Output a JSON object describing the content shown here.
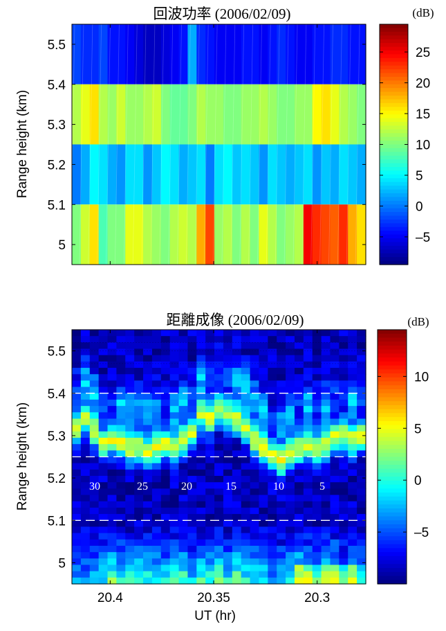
{
  "chart_data": [
    {
      "type": "heatmap",
      "title": "回波功率 (2006/02/09)",
      "ylabel": "Range height (km)",
      "xlabel": "",
      "colorbar_unit": "(dB)",
      "colorbar_ticks": [
        "25",
        "20",
        "15",
        "10",
        "5",
        "0",
        "–5"
      ],
      "colorbar_range": [
        -9.5,
        29.5
      ],
      "y_ticks": [
        "5.5",
        "5.4",
        "5.3",
        "5.2",
        "5.1",
        "5"
      ],
      "xlim": [
        20.4185,
        20.2765
      ],
      "ylim": [
        4.95,
        5.55
      ],
      "x_start": 20.4185,
      "x_end": 20.2765,
      "rows": [
        {
          "y0": 5.4,
          "y1": 5.55,
          "values": [
            -2,
            -3,
            -3,
            -2,
            -4,
            -4,
            -5,
            -6,
            -7,
            -7,
            -6,
            -5,
            -4,
            2,
            -3,
            -4,
            -5,
            -5,
            -5,
            -4,
            -4,
            -5,
            -4,
            -3,
            -4,
            -5,
            -5,
            -4,
            -4,
            -3,
            -3,
            -4,
            -4
          ]
        },
        {
          "y0": 5.25,
          "y1": 5.4,
          "values": [
            12,
            14,
            16,
            12,
            11,
            13,
            11,
            11,
            12,
            13,
            10,
            9,
            9,
            10,
            12,
            11,
            11,
            10,
            10,
            11,
            11,
            12,
            11,
            10,
            10,
            11,
            11,
            15,
            16,
            14,
            12,
            11,
            10
          ]
        },
        {
          "y0": 5.1,
          "y1": 5.25,
          "values": [
            0,
            2,
            5,
            4,
            2,
            1,
            4,
            4,
            1,
            3,
            5,
            4,
            2,
            3,
            4,
            0,
            4,
            5,
            3,
            4,
            3,
            1,
            4,
            3,
            2,
            3,
            4,
            1,
            3,
            2,
            4,
            3,
            2
          ]
        },
        {
          "y0": 4.95,
          "y1": 5.1,
          "values": [
            10,
            13,
            16,
            8,
            10,
            10,
            14,
            14,
            12,
            11,
            10,
            12,
            13,
            12,
            18,
            22,
            11,
            12,
            10,
            12,
            10,
            14,
            12,
            10,
            11,
            12,
            25,
            23,
            22,
            21,
            23,
            18,
            16
          ]
        }
      ]
    },
    {
      "type": "heatmap",
      "title": "距離成像 (2006/02/09)",
      "ylabel": "Range height (km)",
      "xlabel": "UT (hr)",
      "colorbar_unit": "(dB)",
      "colorbar_ticks": [
        "10",
        "5",
        "0",
        "–5"
      ],
      "colorbar_range": [
        -10,
        14.5
      ],
      "y_ticks": [
        "5.5",
        "5.4",
        "5.3",
        "5.2",
        "5.1",
        "5"
      ],
      "x_ticks": [
        "20.4",
        "20.35",
        "20.3"
      ],
      "xlim": [
        20.4185,
        20.2765
      ],
      "ylim": [
        4.95,
        5.55
      ],
      "dashed_lines_y": [
        5.4,
        5.25,
        5.1
      ],
      "annotations": [
        "30",
        "25",
        "20",
        "15",
        "10",
        "5"
      ],
      "description_note": "",
      "ridge_heights": [
        5.32,
        5.34,
        5.31,
        5.28,
        5.29,
        5.28,
        5.27,
        5.27,
        5.26,
        5.27,
        5.28,
        5.27,
        5.29,
        5.31,
        5.35,
        5.34,
        5.36,
        5.35,
        5.34,
        5.32,
        5.29,
        5.27,
        5.25,
        5.24,
        5.26,
        5.27,
        5.28,
        5.27,
        5.28,
        5.3,
        5.3,
        5.29,
        5.3
      ]
    }
  ]
}
